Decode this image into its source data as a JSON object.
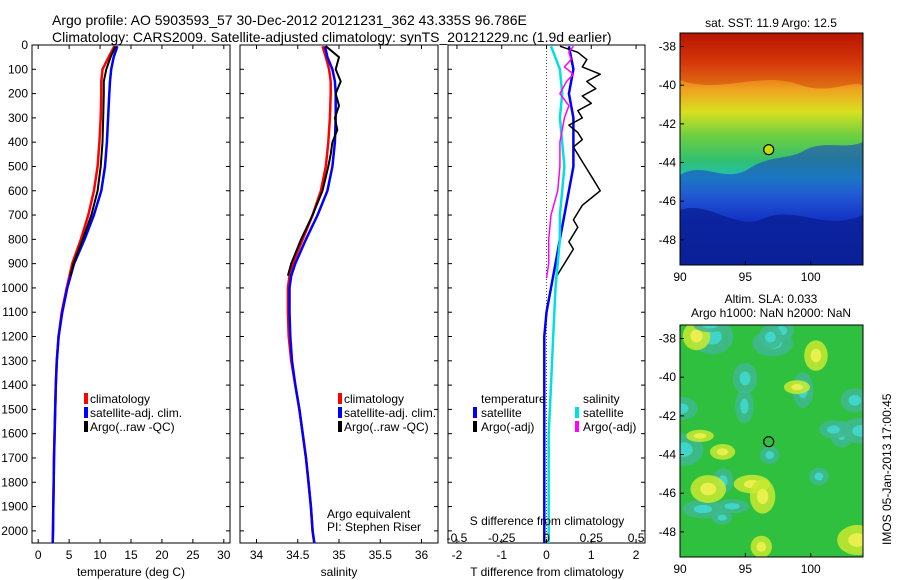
{
  "header": {
    "line1": "Argo profile: AO 5903593_57 30-Dec-2012 20121231_362 43.335S 96.786E",
    "line2": "Climatology: CARS2009. Satellite-adjusted climatology: synTS_20121229.nc (1.9d earlier)"
  },
  "footer": {
    "stamp": "IMOS 05-Jan-2013 17:00:45",
    "argo_equiv_line1": "Argo equivalent",
    "argo_equiv_line2": "PI: Stephen Riser"
  },
  "colors": {
    "climatology": "#ff0000",
    "satellite": "#0000ff",
    "argo": "#000000",
    "sal_satellite": "#00e0e0",
    "sal_argo": "#ff00ff"
  },
  "chart_data": [
    {
      "type": "line",
      "id": "temperature",
      "xlabel": "temperature (deg C)",
      "xlim": [
        -1,
        31
      ],
      "xticks": [
        0,
        5,
        10,
        15,
        20,
        25,
        30
      ],
      "ylim": [
        2050,
        0
      ],
      "yticks": [
        0,
        100,
        200,
        300,
        400,
        500,
        600,
        700,
        800,
        900,
        1000,
        1100,
        1200,
        1300,
        1400,
        1500,
        1600,
        1700,
        1800,
        1900,
        2000
      ],
      "legend": [
        "climatology",
        "satellite-adj. clim.",
        "Argo(..raw -QC)"
      ],
      "series": [
        {
          "name": "climatology",
          "color": "#ff0000",
          "width": 2.5,
          "depth": [
            5,
            50,
            100,
            150,
            200,
            300,
            400,
            500,
            600,
            700,
            800,
            900,
            1000,
            1100,
            1200,
            1300,
            1400,
            1500,
            1600,
            1700,
            1800,
            1900,
            2000,
            2050
          ],
          "values": [
            12.3,
            11.4,
            10.4,
            10.2,
            10.2,
            10.1,
            9.9,
            9.6,
            9.0,
            8.1,
            6.9,
            5.5,
            4.6,
            3.8,
            3.3,
            3.0,
            2.85,
            2.75,
            2.65,
            2.55,
            2.5,
            2.45,
            2.4,
            2.35
          ]
        },
        {
          "name": "satellite-adj. clim.",
          "color": "#0000ff",
          "width": 2.5,
          "depth": [
            5,
            50,
            100,
            150,
            200,
            300,
            400,
            500,
            600,
            700,
            800,
            900,
            1000,
            1100,
            1200,
            1300,
            1400,
            1500,
            1600,
            1700,
            1800,
            1900,
            2000,
            2050
          ],
          "values": [
            12.8,
            12.2,
            11.8,
            11.6,
            11.5,
            11.3,
            11.1,
            10.8,
            10.2,
            9.0,
            7.5,
            5.8,
            4.7,
            3.9,
            3.3,
            3.0,
            2.85,
            2.75,
            2.65,
            2.55,
            2.5,
            2.45,
            2.4,
            2.35
          ]
        },
        {
          "name": "Argo(..raw -QC)",
          "color": "#000000",
          "width": 2,
          "depth": [
            5,
            50,
            100,
            150,
            200,
            300,
            400,
            500,
            600,
            700,
            800,
            900,
            950
          ],
          "values": [
            12.5,
            11.7,
            11.0,
            10.6,
            10.6,
            10.5,
            10.4,
            10.1,
            9.6,
            8.6,
            7.2,
            5.7,
            5.2
          ]
        }
      ]
    },
    {
      "type": "line",
      "id": "salinity",
      "xlabel": "salinity",
      "xlim": [
        33.8,
        36.2
      ],
      "xticks": [
        34,
        34.5,
        35,
        35.5,
        36
      ],
      "ylim": [
        2050,
        0
      ],
      "legend": [
        "climatology",
        "satellite-adj. clim.",
        "Argo(..raw -QC)"
      ],
      "series": [
        {
          "name": "climatology",
          "color": "#ff0000",
          "width": 2.5,
          "depth": [
            5,
            50,
            100,
            150,
            200,
            300,
            400,
            500,
            600,
            700,
            800,
            900,
            950,
            1000,
            1100,
            1200,
            1300,
            1400,
            1500,
            1600,
            1700,
            1800,
            1900,
            2000,
            2050
          ],
          "values": [
            34.8,
            34.84,
            34.88,
            34.9,
            34.9,
            34.89,
            34.87,
            34.84,
            34.78,
            34.68,
            34.56,
            34.44,
            34.4,
            34.38,
            34.38,
            34.39,
            34.42,
            34.47,
            34.52,
            34.56,
            34.6,
            34.63,
            34.66,
            34.68,
            34.7
          ]
        },
        {
          "name": "satellite-adj. clim.",
          "color": "#0000ff",
          "width": 2.5,
          "depth": [
            5,
            50,
            100,
            150,
            200,
            300,
            400,
            500,
            600,
            700,
            800,
            900,
            950,
            1000,
            1100,
            1200,
            1300,
            1400,
            1500,
            1600,
            1700,
            1800,
            1900,
            2000,
            2050
          ],
          "values": [
            34.83,
            34.86,
            34.92,
            34.95,
            34.96,
            34.96,
            34.95,
            34.92,
            34.86,
            34.74,
            34.6,
            34.47,
            34.42,
            34.4,
            34.4,
            34.41,
            34.43,
            34.47,
            34.52,
            34.56,
            34.6,
            34.63,
            34.66,
            34.68,
            34.7
          ]
        },
        {
          "name": "Argo(..raw -QC)",
          "color": "#000000",
          "width": 2,
          "depth": [
            5,
            50,
            100,
            150,
            200,
            250,
            300,
            350,
            400,
            450,
            500,
            600,
            700,
            800,
            900,
            950
          ],
          "values": [
            34.84,
            35.0,
            34.96,
            35.02,
            34.96,
            35.0,
            34.95,
            34.98,
            34.92,
            34.9,
            34.87,
            34.8,
            34.68,
            34.54,
            34.42,
            34.38
          ]
        }
      ]
    },
    {
      "type": "line",
      "id": "difference",
      "xlabel": "T difference from climatology",
      "top_label": "S difference from climatology",
      "xlim": [
        -2.2,
        2.2
      ],
      "xticks": [
        -2,
        -1,
        0,
        1,
        2
      ],
      "top_ticks": [
        "-0.5",
        "-0.25",
        "0",
        "0.25",
        "0.5"
      ],
      "top_tick_positions": [
        -2,
        -1,
        0,
        1,
        2
      ],
      "ylim": [
        2050,
        0
      ],
      "legend": {
        "temperature_title": "temperature",
        "salinity_title": "salinity",
        "t_satellite": "satellite",
        "t_argo": "Argo(-adj)",
        "s_satellite": "satellite",
        "s_argo": "Argo(-adj)"
      },
      "series": [
        {
          "name": "T satellite",
          "color": "#0000ff",
          "width": 2.5,
          "depth": [
            5,
            100,
            200,
            300,
            400,
            500,
            600,
            700,
            800,
            900,
            1000,
            1100,
            1200,
            1400,
            1600,
            1800,
            2000,
            2050
          ],
          "values": [
            0.5,
            0.6,
            0.5,
            0.6,
            0.6,
            0.6,
            0.5,
            0.4,
            0.3,
            0.2,
            0.1,
            0.0,
            -0.05,
            -0.05,
            -0.05,
            -0.05,
            -0.05,
            -0.05
          ]
        },
        {
          "name": "T Argo(-adj)",
          "color": "#000000",
          "width": 1.5,
          "depth": [
            5,
            30,
            60,
            90,
            120,
            150,
            180,
            210,
            240,
            270,
            300,
            330,
            360,
            390,
            420,
            450,
            480,
            510,
            540,
            570,
            600,
            630,
            660,
            690,
            720,
            750,
            780,
            810,
            840,
            870,
            900,
            930,
            960
          ],
          "values": [
            0.3,
            0.7,
            0.9,
            0.8,
            1.2,
            0.9,
            1.1,
            0.8,
            1.0,
            0.7,
            0.8,
            0.5,
            0.7,
            0.8,
            0.6,
            0.7,
            0.8,
            0.9,
            1.0,
            1.1,
            1.2,
            1.0,
            0.8,
            0.7,
            0.6,
            0.7,
            0.6,
            0.5,
            0.6,
            0.5,
            0.4,
            0.3,
            0.2
          ]
        },
        {
          "name": "S satellite",
          "color": "#00e0e0",
          "width": 2.5,
          "depth": [
            5,
            100,
            200,
            300,
            400,
            500,
            600,
            700,
            800,
            900,
            1000,
            1200,
            1400,
            1600,
            1800,
            2000,
            2050
          ],
          "values": [
            0.1,
            0.3,
            0.35,
            0.3,
            0.35,
            0.4,
            0.35,
            0.3,
            0.3,
            0.25,
            0.2,
            0.15,
            0.1,
            0.05,
            0.05,
            0.05,
            0.05
          ]
        },
        {
          "name": "S Argo(-adj)",
          "color": "#ff00ff",
          "width": 1.5,
          "depth": [
            5,
            30,
            60,
            90,
            120,
            150,
            200,
            250,
            300,
            350,
            400,
            500,
            600,
            700,
            800,
            900,
            960
          ],
          "values": [
            0.6,
            0.5,
            0.55,
            0.4,
            0.6,
            0.45,
            0.3,
            0.5,
            0.4,
            0.35,
            0.3,
            0.3,
            0.25,
            0.1,
            0.05,
            0.05,
            0.0
          ]
        }
      ]
    },
    {
      "type": "heatmap",
      "id": "sst_map",
      "title": "sat. SST: 11.9 Argo: 12.5",
      "xlim": [
        90,
        104
      ],
      "ylim": [
        -49.3,
        -37.3
      ],
      "xticks": [
        90,
        95,
        100
      ],
      "yticks": [
        -38,
        -40,
        -42,
        -44,
        -46,
        -48
      ],
      "marker": {
        "lon": 96.786,
        "lat": -43.335
      }
    },
    {
      "type": "heatmap",
      "id": "sla_map",
      "title_line1": "Altim. SLA: 0.033",
      "title_line2": "Argo h1000: NaN h2000: NaN",
      "xlim": [
        90,
        104
      ],
      "ylim": [
        -49.3,
        -37.3
      ],
      "xticks": [
        90,
        95,
        100
      ],
      "yticks": [
        -38,
        -40,
        -42,
        -44,
        -46,
        -48
      ],
      "marker": {
        "lon": 96.786,
        "lat": -43.335
      }
    }
  ]
}
